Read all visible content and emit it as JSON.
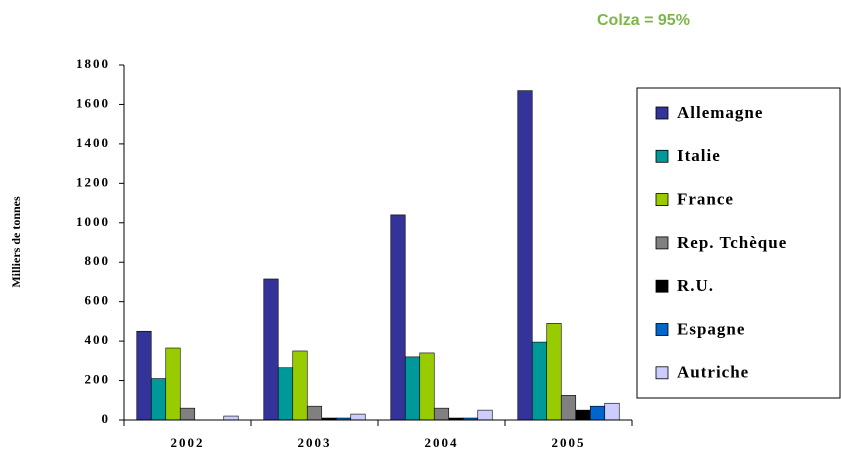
{
  "chart_data": {
    "type": "bar",
    "annotation": "Colza = 95%",
    "y_label": "Milliers de tonnes",
    "categories": [
      "2002",
      "2003",
      "2004",
      "2005"
    ],
    "series": [
      {
        "name": "Allemagne",
        "color": "#333399",
        "values": [
          450,
          715,
          1040,
          1670
        ]
      },
      {
        "name": "Italie",
        "color": "#009999",
        "values": [
          210,
          265,
          320,
          395
        ]
      },
      {
        "name": "France",
        "color": "#99cc00",
        "values": [
          365,
          350,
          340,
          490
        ]
      },
      {
        "name": "Rep. Tchèque",
        "color": "#808080",
        "values": [
          60,
          70,
          60,
          125
        ]
      },
      {
        "name": "R.U.",
        "color": "#000000",
        "values": [
          0,
          10,
          10,
          50
        ]
      },
      {
        "name": "Espagne",
        "color": "#0066cc",
        "values": [
          0,
          10,
          10,
          70
        ]
      },
      {
        "name": "Autriche",
        "color": "#ccccff",
        "values": [
          20,
          30,
          50,
          85
        ]
      }
    ],
    "ylim": [
      0,
      1800
    ],
    "yticks": [
      0,
      200,
      400,
      600,
      800,
      1000,
      1200,
      1400,
      1600,
      1800
    ],
    "grid": false,
    "legend": "right"
  }
}
